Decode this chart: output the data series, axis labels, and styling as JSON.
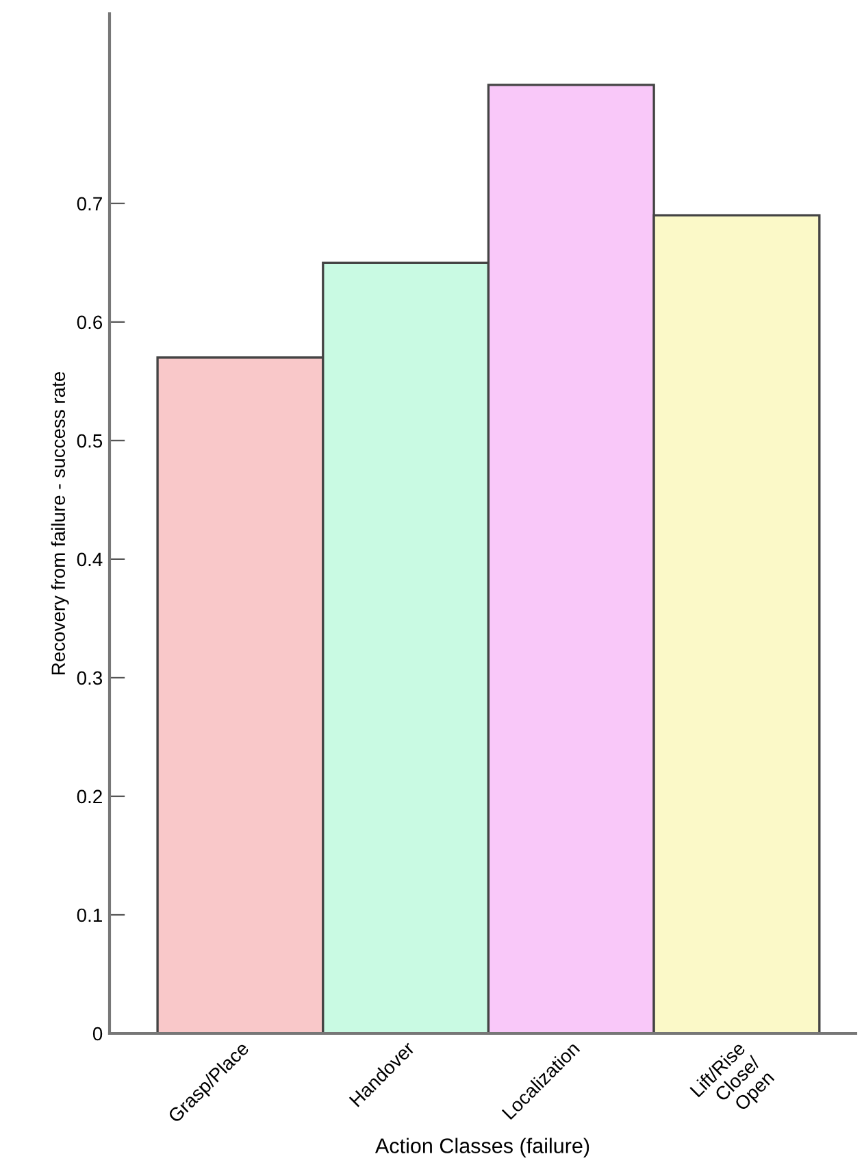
{
  "chart_data": {
    "type": "bar",
    "xlabel": "Action Classes (failure)",
    "ylabel": "Recovery from failure - success rate",
    "categories": [
      "Grasp/Place",
      "Handover",
      "Localization",
      "Lift/Rise\nClose/\nOpen"
    ],
    "values": [
      0.57,
      0.65,
      0.8,
      0.69
    ],
    "colors": [
      "#f9c8c9",
      "#c9fae3",
      "#f9c8f9",
      "#fbf9c8"
    ],
    "ylim": [
      0,
      0.86
    ],
    "yticks": [
      0,
      0.1,
      0.2,
      0.3,
      0.4,
      0.5,
      0.6,
      0.7
    ],
    "grid": false,
    "legend": false
  }
}
